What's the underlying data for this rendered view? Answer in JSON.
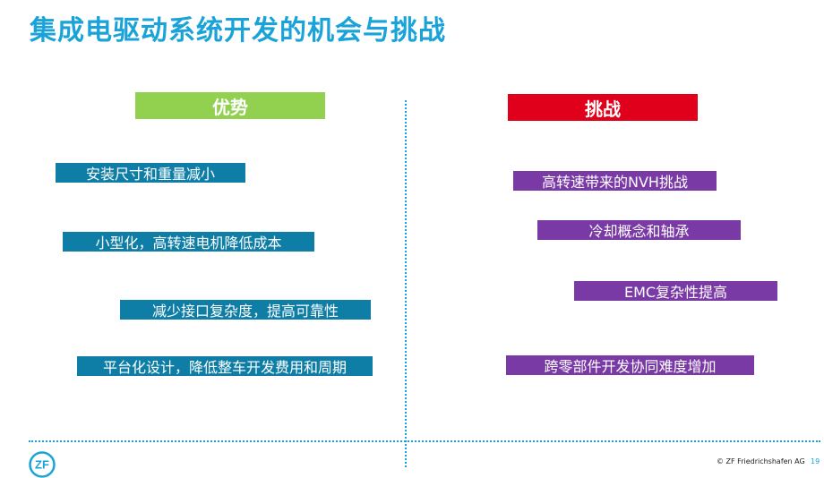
{
  "title": "集成电驱动系统开发的机会与挑战",
  "advantages": {
    "header": "优势",
    "items": [
      "安装尺寸和重量减小",
      "小型化，高转速电机降低成本",
      "减少接口复杂度，提高可靠性",
      "平台化设计，降低整车开发费用和周期"
    ]
  },
  "challenges": {
    "header": "挑战",
    "items": [
      "高转速带来的NVH挑战",
      "冷却概念和轴承",
      "EMC复杂性提高",
      "跨零部件开发协同难度增加"
    ]
  },
  "footer": {
    "logo_text": "ZF",
    "copyright": "© ZF Friedrichshafen AG",
    "page_number": "19"
  },
  "colors": {
    "accent": "#1aa3d9",
    "advantage_header": "#92d050",
    "challenge_header": "#e0001b",
    "advantage_item": "#0f7ea6",
    "challenge_item": "#7a3aa6"
  }
}
